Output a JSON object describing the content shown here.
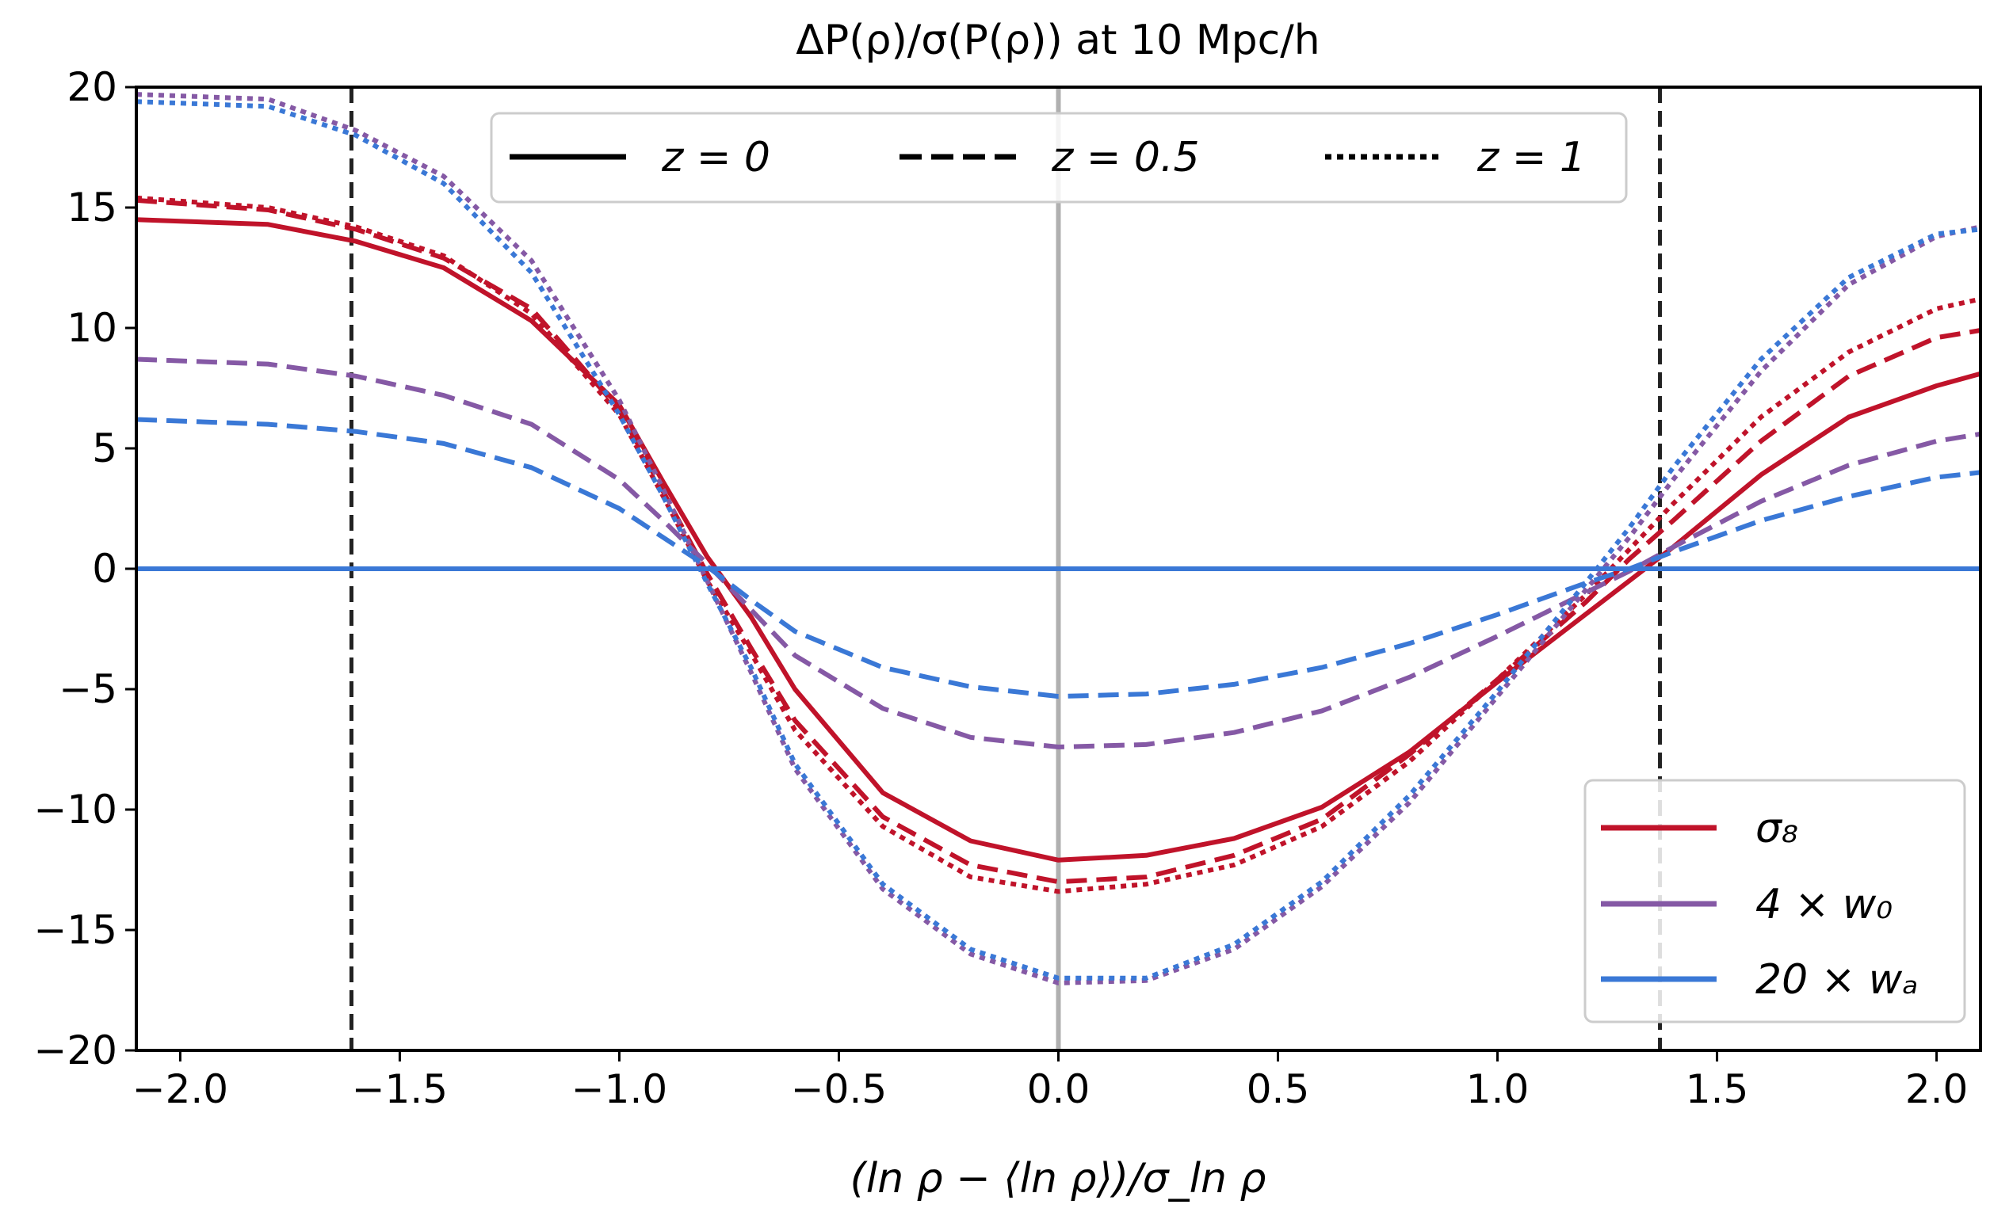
{
  "chart_data": {
    "type": "line",
    "title": "ΔP(ρ)/σ(P(ρ)) at 10 Mpc/h",
    "xlabel": "(ln ρ − ⟨ln ρ⟩)/σ_ln ρ",
    "ylabel": "",
    "xlim": [
      -2.1,
      2.1
    ],
    "ylim": [
      -20,
      20
    ],
    "xticks": [
      -2.0,
      -1.5,
      -1.0,
      -0.5,
      0.0,
      0.5,
      1.0,
      1.5,
      2.0
    ],
    "xtick_labels": [
      "−2.0",
      "−1.5",
      "−1.0",
      "−0.5",
      "0.0",
      "0.5",
      "1.0",
      "1.5",
      "2.0"
    ],
    "yticks": [
      20,
      15,
      10,
      5,
      0,
      -5,
      -10,
      -15,
      -20
    ],
    "ytick_labels": [
      "20",
      "15",
      "10",
      "5",
      "0",
      "−5",
      "−10",
      "−15",
      "−20"
    ],
    "vertical_lines": [
      {
        "x": -1.61,
        "style": "dashed",
        "color": "#222222"
      },
      {
        "x": 0.0,
        "style": "solid",
        "color": "#b0b0b0"
      },
      {
        "x": 1.37,
        "style": "dashed",
        "color": "#222222"
      }
    ],
    "parameters": [
      {
        "name": "σ8",
        "label": "σ₈",
        "color": "#c0132a"
      },
      {
        "name": "4×w0",
        "label": "4 × w₀",
        "color": "#8559a5"
      },
      {
        "name": "20×wa",
        "label": "20 × wₐ",
        "color": "#3a78d6"
      }
    ],
    "redshifts": [
      {
        "z": "0",
        "label": "z = 0",
        "style": "solid"
      },
      {
        "z": "0.5",
        "label": "z = 0.5",
        "style": "dashed"
      },
      {
        "z": "1",
        "label": "z = 1",
        "style": "dotted"
      }
    ],
    "x": [
      -2.1,
      -1.8,
      -1.6,
      -1.4,
      -1.2,
      -1.0,
      -0.9,
      -0.8,
      -0.7,
      -0.6,
      -0.4,
      -0.2,
      0.0,
      0.2,
      0.4,
      0.6,
      0.8,
      1.0,
      1.2,
      1.3,
      1.4,
      1.6,
      1.8,
      2.0,
      2.1
    ],
    "series": [
      {
        "name": "σ8, z=0",
        "parameter": "σ8",
        "z": "0",
        "style": "solid",
        "color": "#c0132a",
        "values": [
          14.5,
          14.3,
          13.6,
          12.5,
          10.3,
          6.8,
          3.6,
          0.5,
          -2.0,
          -5.0,
          -9.3,
          -11.3,
          -12.1,
          -11.9,
          -11.2,
          -9.9,
          -7.6,
          -4.7,
          -1.9,
          -0.5,
          0.9,
          3.9,
          6.3,
          7.6,
          8.1
        ]
      },
      {
        "name": "σ8, z=0.5",
        "parameter": "σ8",
        "z": "0.5",
        "style": "dashed",
        "color": "#c0132a",
        "values": [
          15.3,
          14.9,
          14.1,
          12.9,
          10.8,
          6.6,
          3.2,
          -0.2,
          -3.3,
          -6.3,
          -10.3,
          -12.3,
          -13.0,
          -12.8,
          -11.9,
          -10.4,
          -7.7,
          -4.6,
          -1.4,
          0.4,
          2.0,
          5.3,
          8.0,
          9.6,
          9.9
        ]
      },
      {
        "name": "σ8, z=1",
        "parameter": "σ8",
        "z": "1",
        "style": "dotted",
        "color": "#c0132a",
        "values": [
          15.4,
          15.0,
          14.2,
          13.0,
          10.6,
          6.4,
          3.0,
          -0.5,
          -3.5,
          -6.7,
          -10.7,
          -12.8,
          -13.4,
          -13.1,
          -12.3,
          -10.7,
          -8.0,
          -4.6,
          -1.1,
          0.8,
          2.7,
          6.3,
          9.0,
          10.8,
          11.2
        ]
      },
      {
        "name": "4×w0, z=0",
        "parameter": "4×w0",
        "z": "0",
        "style": "solid",
        "color": "#8559a5",
        "values": [
          0,
          0,
          0,
          0,
          0,
          0,
          0,
          0,
          0,
          0,
          0,
          0,
          0,
          0,
          0,
          0,
          0,
          0,
          0,
          0,
          0,
          0,
          0,
          0,
          0
        ]
      },
      {
        "name": "4×w0, z=0.5",
        "parameter": "4×w0",
        "z": "0.5",
        "style": "dashed",
        "color": "#8559a5",
        "values": [
          8.7,
          8.5,
          8.0,
          7.2,
          6.0,
          3.7,
          2.0,
          0.2,
          -1.7,
          -3.6,
          -5.8,
          -7.0,
          -7.4,
          -7.3,
          -6.8,
          -5.9,
          -4.5,
          -2.8,
          -1.0,
          -0.1,
          0.9,
          2.8,
          4.3,
          5.3,
          5.6
        ]
      },
      {
        "name": "4×w0, z=1",
        "parameter": "4×w0",
        "z": "1",
        "style": "dotted",
        "color": "#8559a5",
        "values": [
          19.7,
          19.5,
          18.2,
          16.3,
          12.8,
          7.0,
          3.3,
          -0.5,
          -4.3,
          -8.3,
          -13.3,
          -16.0,
          -17.2,
          -17.1,
          -15.8,
          -13.2,
          -9.7,
          -5.3,
          -0.9,
          1.3,
          3.7,
          8.2,
          11.8,
          13.8,
          14.2
        ]
      },
      {
        "name": "20×wa, z=0",
        "parameter": "20×wa",
        "z": "0",
        "style": "solid",
        "color": "#3a78d6",
        "values": [
          0,
          0,
          0,
          0,
          0,
          0,
          0,
          0,
          0,
          0,
          0,
          0,
          0,
          0,
          0,
          0,
          0,
          0,
          0,
          0,
          0,
          0,
          0,
          0,
          0
        ]
      },
      {
        "name": "20×wa, z=0.5",
        "parameter": "20×wa",
        "z": "0.5",
        "style": "dashed",
        "color": "#3a78d6",
        "values": [
          6.2,
          6.0,
          5.7,
          5.2,
          4.2,
          2.5,
          1.3,
          0.1,
          -1.3,
          -2.6,
          -4.1,
          -4.9,
          -5.3,
          -5.2,
          -4.8,
          -4.1,
          -3.1,
          -1.9,
          -0.6,
          0.0,
          0.7,
          2.0,
          3.0,
          3.8,
          4.0
        ]
      },
      {
        "name": "20×wa, z=1",
        "parameter": "20×wa",
        "z": "1",
        "style": "dotted",
        "color": "#3a78d6",
        "values": [
          19.4,
          19.2,
          18.0,
          16.0,
          12.3,
          6.4,
          3.0,
          -0.6,
          -4.1,
          -8.1,
          -13.1,
          -15.8,
          -17.0,
          -17.0,
          -15.6,
          -13.0,
          -9.4,
          -5.1,
          -0.6,
          1.7,
          4.2,
          8.7,
          12.1,
          13.9,
          14.1
        ]
      }
    ],
    "legends": [
      {
        "kind": "linestyle",
        "placement": "top-center"
      },
      {
        "kind": "color",
        "placement": "lower-right"
      }
    ]
  }
}
